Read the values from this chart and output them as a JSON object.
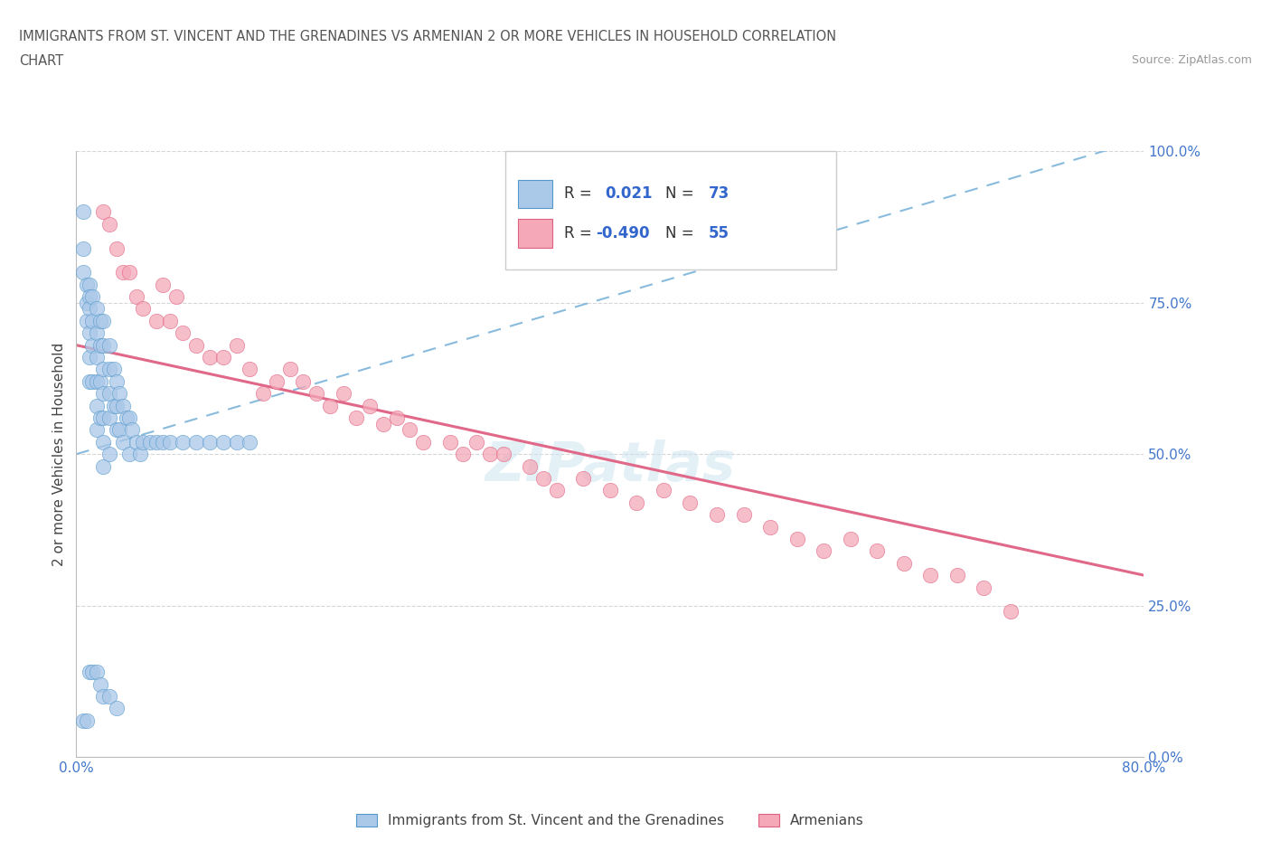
{
  "title_line1": "IMMIGRANTS FROM ST. VINCENT AND THE GRENADINES VS ARMENIAN 2 OR MORE VEHICLES IN HOUSEHOLD CORRELATION",
  "title_line2": "CHART",
  "source_text": "Source: ZipAtlas.com",
  "ylabel": "2 or more Vehicles in Household",
  "xmin": 0.0,
  "xmax": 0.8,
  "ymin": 0.0,
  "ymax": 1.0,
  "ytick_values": [
    0.0,
    0.25,
    0.5,
    0.75,
    1.0
  ],
  "grid_color": "#cccccc",
  "background_color": "#ffffff",
  "blue_color": "#aac8e8",
  "pink_color": "#f4a8b8",
  "blue_edge_color": "#5599cc",
  "pink_edge_color": "#e06080",
  "pink_line_color": "#e06888",
  "dashed_line_color": "#88bbdd",
  "blue_solid_line_color": "#3366aa",
  "legend_label1": "Immigrants from St. Vincent and the Grenadines",
  "legend_label2": "Armenians",
  "watermark": "ZIPatlas",
  "tick_color": "#4477cc",
  "blue_scatter_x": [
    0.005,
    0.005,
    0.005,
    0.008,
    0.008,
    0.008,
    0.01,
    0.01,
    0.01,
    0.01,
    0.01,
    0.01,
    0.012,
    0.012,
    0.012,
    0.012,
    0.015,
    0.015,
    0.015,
    0.015,
    0.015,
    0.015,
    0.018,
    0.018,
    0.018,
    0.018,
    0.02,
    0.02,
    0.02,
    0.02,
    0.02,
    0.02,
    0.02,
    0.025,
    0.025,
    0.025,
    0.025,
    0.025,
    0.028,
    0.028,
    0.03,
    0.03,
    0.03,
    0.032,
    0.032,
    0.035,
    0.035,
    0.038,
    0.04,
    0.04,
    0.042,
    0.045,
    0.048,
    0.05,
    0.055,
    0.06,
    0.065,
    0.07,
    0.08,
    0.09,
    0.1,
    0.11,
    0.12,
    0.13,
    0.01,
    0.012,
    0.015,
    0.018,
    0.02,
    0.025,
    0.03,
    0.005,
    0.008
  ],
  "blue_scatter_y": [
    0.9,
    0.84,
    0.8,
    0.78,
    0.75,
    0.72,
    0.78,
    0.76,
    0.74,
    0.7,
    0.66,
    0.62,
    0.76,
    0.72,
    0.68,
    0.62,
    0.74,
    0.7,
    0.66,
    0.62,
    0.58,
    0.54,
    0.72,
    0.68,
    0.62,
    0.56,
    0.72,
    0.68,
    0.64,
    0.6,
    0.56,
    0.52,
    0.48,
    0.68,
    0.64,
    0.6,
    0.56,
    0.5,
    0.64,
    0.58,
    0.62,
    0.58,
    0.54,
    0.6,
    0.54,
    0.58,
    0.52,
    0.56,
    0.56,
    0.5,
    0.54,
    0.52,
    0.5,
    0.52,
    0.52,
    0.52,
    0.52,
    0.52,
    0.52,
    0.52,
    0.52,
    0.52,
    0.52,
    0.52,
    0.14,
    0.14,
    0.14,
    0.12,
    0.1,
    0.1,
    0.08,
    0.06,
    0.06
  ],
  "pink_scatter_x": [
    0.02,
    0.025,
    0.03,
    0.035,
    0.04,
    0.045,
    0.05,
    0.06,
    0.065,
    0.07,
    0.075,
    0.08,
    0.09,
    0.1,
    0.11,
    0.12,
    0.13,
    0.14,
    0.15,
    0.16,
    0.17,
    0.18,
    0.19,
    0.2,
    0.21,
    0.22,
    0.23,
    0.24,
    0.25,
    0.26,
    0.28,
    0.29,
    0.3,
    0.31,
    0.32,
    0.34,
    0.35,
    0.36,
    0.38,
    0.4,
    0.42,
    0.44,
    0.46,
    0.48,
    0.5,
    0.52,
    0.54,
    0.56,
    0.58,
    0.6,
    0.62,
    0.64,
    0.66,
    0.68,
    0.7
  ],
  "pink_scatter_y": [
    0.9,
    0.88,
    0.84,
    0.8,
    0.8,
    0.76,
    0.74,
    0.72,
    0.78,
    0.72,
    0.76,
    0.7,
    0.68,
    0.66,
    0.66,
    0.68,
    0.64,
    0.6,
    0.62,
    0.64,
    0.62,
    0.6,
    0.58,
    0.6,
    0.56,
    0.58,
    0.55,
    0.56,
    0.54,
    0.52,
    0.52,
    0.5,
    0.52,
    0.5,
    0.5,
    0.48,
    0.46,
    0.44,
    0.46,
    0.44,
    0.42,
    0.44,
    0.42,
    0.4,
    0.4,
    0.38,
    0.36,
    0.34,
    0.36,
    0.34,
    0.32,
    0.3,
    0.3,
    0.28,
    0.24
  ],
  "blue_trend_x": [
    0.0,
    0.8
  ],
  "blue_trend_y": [
    0.5,
    1.02
  ],
  "pink_trend_x": [
    0.0,
    0.8
  ],
  "pink_trend_y": [
    0.68,
    0.3
  ]
}
